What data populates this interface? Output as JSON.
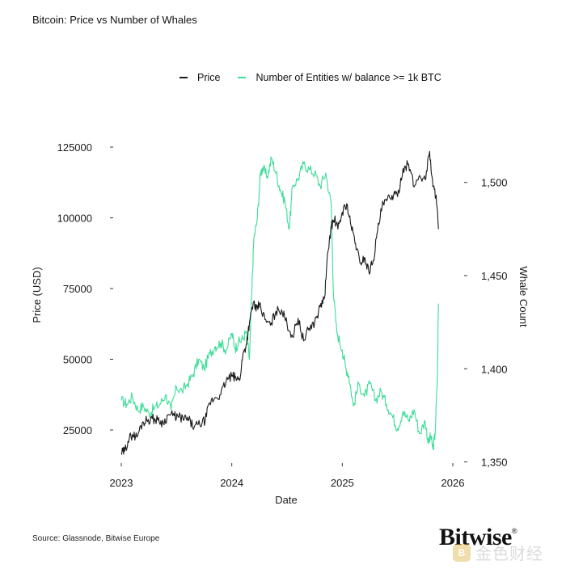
{
  "header": {
    "title": "Bitcoin: Price vs Number of Whales"
  },
  "legend": {
    "price_label": "Price",
    "whales_label": "Number of Entities w/ balance >= 1k BTC"
  },
  "footer": {
    "source": "Source: Glassnode, Bitwise Europe",
    "brand": "Bitwise",
    "brand_mark": "®",
    "watermark_text": "金色财经",
    "watermark_icon": "B"
  },
  "colors": {
    "price": "#1a1a1a",
    "whales": "#3ddc97",
    "text": "#1a1a1a"
  },
  "chart_data": {
    "type": "line",
    "title": "Bitcoin: Price vs Number of Whales",
    "xlabel": "Date",
    "ylabel": "Price (USD)",
    "y2label": "Whale Count",
    "xlim": [
      2023.0,
      2026.0
    ],
    "ylim": [
      17000,
      127000
    ],
    "y2lim": [
      1355,
      1522
    ],
    "x_ticks": [
      2023,
      2024,
      2025,
      2026
    ],
    "x_tick_labels": [
      "2023",
      "2024",
      "2025",
      "2026"
    ],
    "y_ticks": [
      25000,
      50000,
      75000,
      100000,
      125000
    ],
    "y_tick_labels": [
      "25000",
      "50000",
      "75000",
      "100000",
      "125000"
    ],
    "y2_ticks": [
      1350,
      1400,
      1450,
      1500
    ],
    "y2_tick_labels": [
      "1,350",
      "1,400",
      "1,450",
      "1,500"
    ],
    "grid": false,
    "legend_position": "top",
    "series": [
      {
        "name": "Price",
        "axis": "left",
        "x": [
          2023.0,
          2023.03,
          2023.06,
          2023.1,
          2023.14,
          2023.19,
          2023.23,
          2023.28,
          2023.33,
          2023.38,
          2023.43,
          2023.48,
          2023.52,
          2023.57,
          2023.61,
          2023.66,
          2023.71,
          2023.76,
          2023.8,
          2023.85,
          2023.9,
          2023.95,
          2024.0,
          2024.03,
          2024.07,
          2024.1,
          2024.13,
          2024.16,
          2024.2,
          2024.22,
          2024.25,
          2024.3,
          2024.35,
          2024.4,
          2024.45,
          2024.5,
          2024.55,
          2024.6,
          2024.65,
          2024.7,
          2024.75,
          2024.8,
          2024.84,
          2024.87,
          2024.9,
          2024.93,
          2024.96,
          2025.0,
          2025.04,
          2025.08,
          2025.12,
          2025.16,
          2025.2,
          2025.24,
          2025.28,
          2025.32,
          2025.36,
          2025.4,
          2025.45,
          2025.5,
          2025.55,
          2025.6,
          2025.65,
          2025.7,
          2025.75,
          2025.79,
          2025.82,
          2025.85,
          2025.87
        ],
        "values": [
          16800,
          17500,
          21000,
          23500,
          22500,
          27500,
          28500,
          29000,
          28500,
          27500,
          30500,
          30000,
          29500,
          29000,
          28500,
          26000,
          27000,
          28500,
          34500,
          36500,
          37500,
          42500,
          44000,
          43500,
          42500,
          51500,
          55000,
          63000,
          70500,
          67000,
          69500,
          64000,
          62000,
          67000,
          67500,
          62500,
          58000,
          64500,
          56500,
          61000,
          63000,
          68500,
          72000,
          88000,
          97000,
          99500,
          96000,
          102000,
          105000,
          97000,
          91000,
          84000,
          86000,
          81000,
          85000,
          95500,
          104000,
          106000,
          108000,
          107500,
          117500,
          119000,
          111000,
          115000,
          113500,
          123500,
          111000,
          108000,
          96000
        ]
      },
      {
        "name": "Number of Entities w/ balance >= 1k BTC",
        "axis": "right",
        "x": [
          2023.0,
          2023.05,
          2023.1,
          2023.15,
          2023.2,
          2023.25,
          2023.3,
          2023.35,
          2023.4,
          2023.45,
          2023.5,
          2023.55,
          2023.6,
          2023.65,
          2023.7,
          2023.75,
          2023.8,
          2023.85,
          2023.9,
          2023.95,
          2024.0,
          2024.03,
          2024.06,
          2024.1,
          2024.13,
          2024.16,
          2024.18,
          2024.2,
          2024.23,
          2024.26,
          2024.28,
          2024.32,
          2024.36,
          2024.4,
          2024.44,
          2024.48,
          2024.52,
          2024.55,
          2024.6,
          2024.65,
          2024.7,
          2024.75,
          2024.8,
          2024.85,
          2024.9,
          2024.92,
          2024.95,
          2025.0,
          2025.03,
          2025.06,
          2025.1,
          2025.15,
          2025.2,
          2025.25,
          2025.3,
          2025.35,
          2025.4,
          2025.45,
          2025.5,
          2025.55,
          2025.6,
          2025.65,
          2025.7,
          2025.75,
          2025.78,
          2025.8,
          2025.82,
          2025.84,
          2025.86,
          2025.87
        ],
        "values": [
          1383,
          1381,
          1385,
          1378,
          1380,
          1376,
          1379,
          1381,
          1386,
          1378,
          1390,
          1388,
          1392,
          1397,
          1405,
          1400,
          1408,
          1412,
          1414,
          1410,
          1419,
          1411,
          1414,
          1416,
          1420,
          1405,
          1440,
          1470,
          1480,
          1505,
          1508,
          1503,
          1513,
          1505,
          1496,
          1490,
          1475,
          1498,
          1502,
          1510,
          1507,
          1505,
          1498,
          1505,
          1488,
          1440,
          1420,
          1410,
          1401,
          1396,
          1380,
          1392,
          1385,
          1392,
          1383,
          1388,
          1381,
          1375,
          1368,
          1377,
          1372,
          1378,
          1365,
          1372,
          1360,
          1364,
          1357,
          1365,
          1395,
          1435
        ]
      }
    ]
  }
}
